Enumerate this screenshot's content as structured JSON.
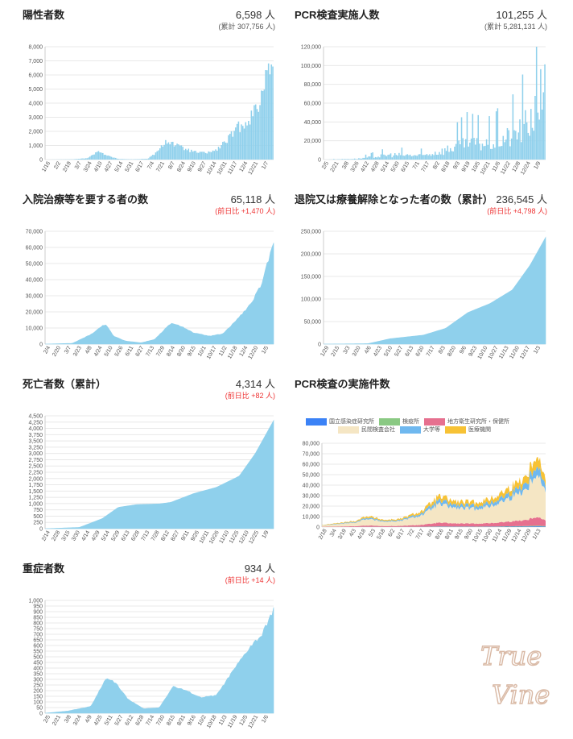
{
  "panels": [
    {
      "id": "positive",
      "title": "陽性者数",
      "value": "6,598 人",
      "sub": "(累計 307,756 人)",
      "sub_red": false
    },
    {
      "id": "pcr",
      "title": "PCR検査実施人数",
      "value": "101,255 人",
      "sub": "(累計 5,281,131 人)",
      "sub_red": false
    },
    {
      "id": "hospital",
      "title": "入院治療等を要する者の数",
      "value": "65,118 人",
      "sub": "(前日比 +1,470 人)",
      "sub_red": true
    },
    {
      "id": "discharged",
      "title": "退院又は療養解除となった者の数（累計）",
      "value": "236,545 人",
      "sub": "(前日比 +4,798 人)",
      "sub_red": true
    },
    {
      "id": "deaths",
      "title": "死亡者数（累計）",
      "value": "4,314 人",
      "sub": "(前日比 +82 人)",
      "sub_red": true
    },
    {
      "id": "pcrcount",
      "title": "PCR検査の実施件数",
      "value": "",
      "sub": "",
      "sub_red": false
    },
    {
      "id": "severe",
      "title": "重症者数",
      "value": "934 人",
      "sub": "(前日比 +14 人)",
      "sub_red": true
    }
  ],
  "chart_data": [
    {
      "panel": "positive",
      "type": "bar",
      "color": "#8fd0ec",
      "ylim": [
        0,
        8000
      ],
      "yticks": [
        "0",
        "1,000",
        "2,000",
        "3,000",
        "4,000",
        "5,000",
        "6,000",
        "7,000",
        "8,000"
      ],
      "xticks": [
        "1/16",
        "2/2",
        "2/19",
        "3/7",
        "3/24",
        "4/10",
        "4/27",
        "5/14",
        "5/31",
        "6/17",
        "7/4",
        "7/21",
        "8/7",
        "8/24",
        "9/10",
        "9/27",
        "10/14",
        "10/31",
        "11/17",
        "12/4",
        "12/21",
        "1/7"
      ],
      "anchors": [
        [
          0,
          0
        ],
        [
          0.12,
          20
        ],
        [
          0.18,
          100
        ],
        [
          0.22,
          500
        ],
        [
          0.24,
          650
        ],
        [
          0.27,
          300
        ],
        [
          0.32,
          50
        ],
        [
          0.38,
          20
        ],
        [
          0.45,
          60
        ],
        [
          0.5,
          700
        ],
        [
          0.53,
          1500
        ],
        [
          0.55,
          1300
        ],
        [
          0.6,
          900
        ],
        [
          0.65,
          600
        ],
        [
          0.7,
          500
        ],
        [
          0.75,
          700
        ],
        [
          0.8,
          1500
        ],
        [
          0.85,
          2500
        ],
        [
          0.9,
          3200
        ],
        [
          0.95,
          4500
        ],
        [
          0.975,
          7900
        ],
        [
          1.0,
          6598
        ]
      ]
    },
    {
      "panel": "pcr",
      "type": "bar",
      "color": "#8fd0ec",
      "ylim": [
        0,
        120000
      ],
      "yticks": [
        "0",
        "20,000",
        "40,000",
        "60,000",
        "80,000",
        "100,000",
        "120,000"
      ],
      "xticks": [
        "2/5",
        "2/21",
        "3/8",
        "3/26",
        "4/12",
        "4/28",
        "5/14",
        "5/30",
        "6/15",
        "7/1",
        "7/17",
        "8/2",
        "8/18",
        "9/3",
        "9/19",
        "10/5",
        "10/21",
        "11/6",
        "11/22",
        "12/8",
        "12/24",
        "1/9"
      ],
      "anchors": [
        [
          0,
          0
        ],
        [
          0.15,
          1000
        ],
        [
          0.3,
          6000
        ],
        [
          0.45,
          5000
        ],
        [
          0.55,
          12000
        ],
        [
          0.65,
          22000
        ],
        [
          0.75,
          20000
        ],
        [
          0.85,
          30000
        ],
        [
          0.92,
          45000
        ],
        [
          0.97,
          70000
        ],
        [
          1.0,
          101255
        ]
      ]
    },
    {
      "panel": "hospital",
      "type": "area",
      "color": "#8fd0ec",
      "ylim": [
        0,
        70000
      ],
      "yticks": [
        "0",
        "10,000",
        "20,000",
        "30,000",
        "40,000",
        "50,000",
        "60,000",
        "70,000"
      ],
      "xticks": [
        "2/4",
        "2/20",
        "3/7",
        "3/23",
        "4/8",
        "4/24",
        "5/10",
        "5/26",
        "6/11",
        "6/27",
        "7/13",
        "7/29",
        "8/14",
        "8/30",
        "9/15",
        "10/1",
        "10/17",
        "11/2",
        "11/18",
        "12/4",
        "12/20",
        "1/5"
      ],
      "anchors": [
        [
          0,
          0
        ],
        [
          0.12,
          500
        ],
        [
          0.2,
          6000
        ],
        [
          0.25,
          11500
        ],
        [
          0.27,
          11800
        ],
        [
          0.3,
          5000
        ],
        [
          0.35,
          2000
        ],
        [
          0.42,
          800
        ],
        [
          0.48,
          3000
        ],
        [
          0.55,
          13000
        ],
        [
          0.6,
          11000
        ],
        [
          0.65,
          7000
        ],
        [
          0.72,
          5000
        ],
        [
          0.78,
          6500
        ],
        [
          0.85,
          17000
        ],
        [
          0.9,
          25000
        ],
        [
          0.95,
          38000
        ],
        [
          1.0,
          65118
        ]
      ]
    },
    {
      "panel": "discharged",
      "type": "area",
      "color": "#8fd0ec",
      "ylim": [
        0,
        250000
      ],
      "yticks": [
        "0",
        "50,000",
        "100,000",
        "150,000",
        "200,000",
        "250,000"
      ],
      "xticks": [
        "1/29",
        "2/15",
        "3/3",
        "3/20",
        "4/6",
        "4/23",
        "5/10",
        "5/27",
        "6/13",
        "6/30",
        "7/17",
        "8/3",
        "8/20",
        "9/6",
        "9/23",
        "10/10",
        "10/27",
        "11/13",
        "11/30",
        "12/17",
        "1/3"
      ],
      "anchors": [
        [
          0,
          0
        ],
        [
          0.2,
          1000
        ],
        [
          0.3,
          12000
        ],
        [
          0.45,
          20000
        ],
        [
          0.55,
          35000
        ],
        [
          0.65,
          70000
        ],
        [
          0.75,
          90000
        ],
        [
          0.85,
          120000
        ],
        [
          0.93,
          175000
        ],
        [
          1.0,
          236545
        ]
      ]
    },
    {
      "panel": "deaths",
      "type": "area",
      "color": "#8fd0ec",
      "ylim": [
        0,
        4500
      ],
      "yticks": [
        "0",
        "250",
        "500",
        "750",
        "1,000",
        "1,250",
        "1,500",
        "1,750",
        "2,000",
        "2,250",
        "2,500",
        "2,750",
        "3,000",
        "3,250",
        "3,500",
        "3,750",
        "4,000",
        "4,250",
        "4,500"
      ],
      "xticks": [
        "2/14",
        "2/28",
        "3/15",
        "3/30",
        "4/14",
        "4/29",
        "5/14",
        "5/29",
        "6/13",
        "6/28",
        "7/13",
        "7/28",
        "8/12",
        "8/27",
        "9/11",
        "9/26",
        "10/11",
        "10/26",
        "11/10",
        "11/25",
        "12/10",
        "12/25",
        "1/9"
      ],
      "anchors": [
        [
          0,
          0
        ],
        [
          0.15,
          50
        ],
        [
          0.25,
          400
        ],
        [
          0.32,
          850
        ],
        [
          0.4,
          960
        ],
        [
          0.5,
          990
        ],
        [
          0.55,
          1050
        ],
        [
          0.65,
          1400
        ],
        [
          0.75,
          1650
        ],
        [
          0.85,
          2100
        ],
        [
          0.92,
          3000
        ],
        [
          1.0,
          4314
        ]
      ]
    },
    {
      "panel": "pcrcount",
      "type": "area",
      "legend": [
        {
          "name": "国立感染症研究所",
          "color": "#3b82f6"
        },
        {
          "name": "検疫所",
          "color": "#8ac983"
        },
        {
          "name": "地方衛生研究所・保健所",
          "color": "#e6708f"
        },
        {
          "name": "民間検査会社",
          "color": "#f5e6c4"
        },
        {
          "name": "大学等",
          "color": "#6fb8ef"
        },
        {
          "name": "医療機関",
          "color": "#f7c235"
        }
      ],
      "ylim": [
        0,
        80000
      ],
      "yticks": [
        "0",
        "10,000",
        "20,000",
        "30,000",
        "40,000",
        "50,000",
        "60,000",
        "70,000",
        "80,000"
      ],
      "xticks": [
        "2/18",
        "3/4",
        "3/19",
        "4/3",
        "4/18",
        "5/3",
        "5/18",
        "6/2",
        "6/17",
        "7/2",
        "7/17",
        "8/1",
        "8/16",
        "8/31",
        "9/15",
        "9/30",
        "10/15",
        "10/30",
        "11/14",
        "11/29",
        "12/14",
        "12/29",
        "1/13"
      ],
      "anchors": [
        [
          0,
          2000
        ],
        [
          0.15,
          6000
        ],
        [
          0.2,
          11000
        ],
        [
          0.28,
          7000
        ],
        [
          0.35,
          8000
        ],
        [
          0.45,
          16000
        ],
        [
          0.52,
          30000
        ],
        [
          0.6,
          25000
        ],
        [
          0.68,
          24000
        ],
        [
          0.76,
          28000
        ],
        [
          0.85,
          40000
        ],
        [
          0.92,
          52000
        ],
        [
          0.96,
          75000
        ],
        [
          1.0,
          45000
        ]
      ]
    },
    {
      "panel": "severe",
      "type": "area",
      "color": "#8fd0ec",
      "ylim": [
        0,
        1000
      ],
      "yticks": [
        "0",
        "50",
        "100",
        "150",
        "200",
        "250",
        "300",
        "350",
        "400",
        "450",
        "500",
        "550",
        "600",
        "650",
        "700",
        "750",
        "800",
        "850",
        "900",
        "950",
        "1,000"
      ],
      "xticks": [
        "2/5",
        "2/21",
        "3/8",
        "3/24",
        "4/9",
        "4/25",
        "5/11",
        "5/27",
        "6/12",
        "6/28",
        "7/14",
        "7/30",
        "8/15",
        "8/31",
        "9/16",
        "10/2",
        "10/18",
        "11/3",
        "11/19",
        "12/5",
        "12/21",
        "1/6"
      ],
      "anchors": [
        [
          0,
          0
        ],
        [
          0.1,
          20
        ],
        [
          0.2,
          60
        ],
        [
          0.27,
          320
        ],
        [
          0.31,
          270
        ],
        [
          0.36,
          130
        ],
        [
          0.43,
          40
        ],
        [
          0.5,
          50
        ],
        [
          0.56,
          240
        ],
        [
          0.62,
          200
        ],
        [
          0.68,
          140
        ],
        [
          0.75,
          160
        ],
        [
          0.83,
          400
        ],
        [
          0.9,
          600
        ],
        [
          0.95,
          700
        ],
        [
          1.0,
          934
        ]
      ]
    }
  ],
  "watermark": {
    "line1": "True",
    "line2": "Vine"
  }
}
